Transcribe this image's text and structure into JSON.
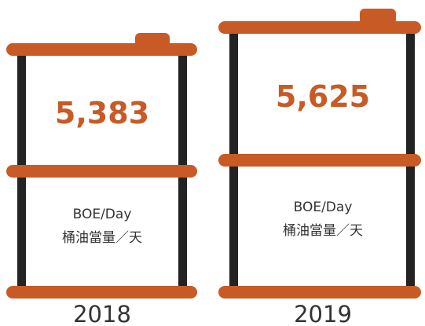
{
  "barrels": [
    {
      "value": "5,383",
      "unit": "BOE/Day",
      "unit_zh": "桶油當量／天",
      "year": "2018"
    },
    {
      "value": "5,625",
      "unit": "BOE/Day",
      "unit_zh": "桶油當量／天",
      "year": "2019"
    }
  ]
}
